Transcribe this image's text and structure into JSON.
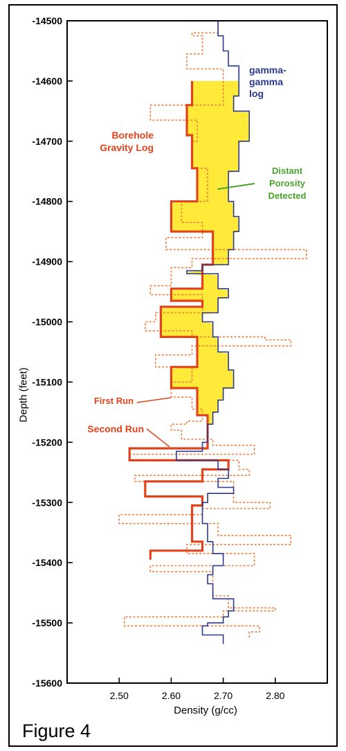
{
  "figure_caption": "Figure 4",
  "chart_data": {
    "type": "line",
    "title": "",
    "xlabel": "Density (g/cc)",
    "ylabel": "Depth (feet)",
    "xlim": [
      2.4,
      2.9
    ],
    "ylim": [
      -15600,
      -14500
    ],
    "xticks": [
      2.5,
      2.6,
      2.7,
      2.8
    ],
    "xtick_labels": [
      "2.50",
      "2.60",
      "2.70",
      "2.80"
    ],
    "yticks": [
      -14500,
      -14600,
      -14700,
      -14800,
      -14900,
      -15000,
      -15100,
      -15200,
      -15300,
      -15400,
      -15500,
      -15600
    ],
    "ytick_labels": [
      "-14500",
      "-14600",
      "-14700",
      "-14800",
      "-14900",
      "-15000",
      "-15100",
      "-15200",
      "-15300",
      "-15400",
      "-15500",
      "-15600"
    ],
    "grid": false,
    "colors": {
      "gamma": "#2b3a8f",
      "second_run": "#e2431b",
      "first_run": "#ef7c3a",
      "porosity_fill": "#ffea3a",
      "porosity_label": "#4aa32a"
    },
    "series": [
      {
        "name": "gamma-gamma log",
        "style": "solid-thin",
        "points": [
          [
            2.69,
            -14500
          ],
          [
            2.69,
            -14525
          ],
          [
            2.7,
            -14525
          ],
          [
            2.7,
            -14550
          ],
          [
            2.71,
            -14550
          ],
          [
            2.71,
            -14575
          ],
          [
            2.73,
            -14575
          ],
          [
            2.73,
            -14625
          ],
          [
            2.72,
            -14625
          ],
          [
            2.72,
            -14650
          ],
          [
            2.75,
            -14650
          ],
          [
            2.75,
            -14700
          ],
          [
            2.73,
            -14700
          ],
          [
            2.73,
            -14750
          ],
          [
            2.71,
            -14750
          ],
          [
            2.71,
            -14800
          ],
          [
            2.72,
            -14800
          ],
          [
            2.72,
            -14825
          ],
          [
            2.73,
            -14825
          ],
          [
            2.73,
            -14850
          ],
          [
            2.72,
            -14850
          ],
          [
            2.72,
            -14880
          ],
          [
            2.71,
            -14880
          ],
          [
            2.71,
            -14905
          ],
          [
            2.66,
            -14905
          ],
          [
            2.66,
            -14915
          ],
          [
            2.63,
            -14915
          ],
          [
            2.63,
            -14920
          ],
          [
            2.69,
            -14920
          ],
          [
            2.69,
            -14945
          ],
          [
            2.71,
            -14945
          ],
          [
            2.71,
            -14960
          ],
          [
            2.69,
            -14960
          ],
          [
            2.69,
            -14985
          ],
          [
            2.66,
            -14985
          ],
          [
            2.66,
            -15000
          ],
          [
            2.68,
            -15000
          ],
          [
            2.68,
            -15025
          ],
          [
            2.69,
            -15025
          ],
          [
            2.69,
            -15050
          ],
          [
            2.71,
            -15050
          ],
          [
            2.71,
            -15080
          ],
          [
            2.72,
            -15080
          ],
          [
            2.72,
            -15110
          ],
          [
            2.7,
            -15110
          ],
          [
            2.7,
            -15130
          ],
          [
            2.69,
            -15130
          ],
          [
            2.69,
            -15150
          ],
          [
            2.68,
            -15150
          ],
          [
            2.68,
            -15170
          ],
          [
            2.67,
            -15170
          ],
          [
            2.67,
            -15200
          ],
          [
            2.66,
            -15200
          ],
          [
            2.66,
            -15215
          ],
          [
            2.61,
            -15215
          ],
          [
            2.61,
            -15230
          ],
          [
            2.69,
            -15230
          ],
          [
            2.69,
            -15245
          ],
          [
            2.71,
            -15245
          ],
          [
            2.71,
            -15260
          ],
          [
            2.69,
            -15260
          ],
          [
            2.69,
            -15275
          ],
          [
            2.72,
            -15275
          ],
          [
            2.72,
            -15285
          ],
          [
            2.67,
            -15285
          ],
          [
            2.67,
            -15300
          ],
          [
            2.66,
            -15300
          ],
          [
            2.66,
            -15335
          ],
          [
            2.67,
            -15335
          ],
          [
            2.67,
            -15365
          ],
          [
            2.68,
            -15365
          ],
          [
            2.68,
            -15385
          ],
          [
            2.7,
            -15385
          ],
          [
            2.7,
            -15405
          ],
          [
            2.68,
            -15405
          ],
          [
            2.68,
            -15420
          ],
          [
            2.67,
            -15420
          ],
          [
            2.67,
            -15435
          ],
          [
            2.68,
            -15435
          ],
          [
            2.68,
            -15460
          ],
          [
            2.72,
            -15460
          ],
          [
            2.72,
            -15480
          ],
          [
            2.71,
            -15480
          ],
          [
            2.71,
            -15490
          ],
          [
            2.7,
            -15490
          ],
          [
            2.7,
            -15500
          ],
          [
            2.67,
            -15500
          ],
          [
            2.67,
            -15505
          ],
          [
            2.66,
            -15505
          ],
          [
            2.66,
            -15520
          ],
          [
            2.7,
            -15520
          ],
          [
            2.7,
            -15535
          ]
        ]
      },
      {
        "name": "Second Run",
        "style": "solid-thick",
        "points": [
          [
            2.64,
            -14600
          ],
          [
            2.64,
            -14640
          ],
          [
            2.63,
            -14640
          ],
          [
            2.63,
            -14690
          ],
          [
            2.64,
            -14690
          ],
          [
            2.64,
            -14745
          ],
          [
            2.65,
            -14745
          ],
          [
            2.65,
            -14800
          ],
          [
            2.6,
            -14800
          ],
          [
            2.6,
            -14850
          ],
          [
            2.68,
            -14850
          ],
          [
            2.68,
            -14905
          ],
          [
            2.66,
            -14905
          ],
          [
            2.66,
            -14945
          ],
          [
            2.6,
            -14945
          ],
          [
            2.6,
            -14965
          ],
          [
            2.66,
            -14965
          ],
          [
            2.66,
            -14975
          ],
          [
            2.58,
            -14975
          ],
          [
            2.58,
            -15025
          ],
          [
            2.62,
            -15025
          ],
          [
            2.62,
            -15025
          ],
          [
            2.65,
            -15025
          ],
          [
            2.65,
            -15075
          ],
          [
            2.6,
            -15075
          ],
          [
            2.6,
            -15110
          ],
          [
            2.65,
            -15110
          ],
          [
            2.65,
            -15155
          ],
          [
            2.67,
            -15155
          ],
          [
            2.67,
            -15210
          ],
          [
            2.52,
            -15210
          ],
          [
            2.52,
            -15230
          ],
          [
            2.71,
            -15230
          ],
          [
            2.71,
            -15245
          ],
          [
            2.66,
            -15245
          ],
          [
            2.66,
            -15265
          ],
          [
            2.55,
            -15265
          ],
          [
            2.55,
            -15290
          ],
          [
            2.66,
            -15290
          ],
          [
            2.66,
            -15305
          ],
          [
            2.64,
            -15305
          ],
          [
            2.64,
            -15365
          ],
          [
            2.66,
            -15365
          ],
          [
            2.66,
            -15380
          ],
          [
            2.56,
            -15380
          ],
          [
            2.56,
            -15395
          ]
        ]
      },
      {
        "name": "First Run",
        "style": "dotted",
        "points": [
          [
            2.69,
            -14500
          ],
          [
            2.69,
            -14520
          ],
          [
            2.64,
            -14520
          ],
          [
            2.64,
            -14525
          ],
          [
            2.66,
            -14525
          ],
          [
            2.66,
            -14555
          ],
          [
            2.63,
            -14555
          ],
          [
            2.63,
            -14580
          ],
          [
            2.7,
            -14580
          ],
          [
            2.7,
            -14640
          ],
          [
            2.56,
            -14640
          ],
          [
            2.56,
            -14665
          ],
          [
            2.65,
            -14665
          ],
          [
            2.65,
            -14700
          ],
          [
            2.64,
            -14700
          ],
          [
            2.64,
            -14745
          ],
          [
            2.67,
            -14745
          ],
          [
            2.67,
            -14800
          ],
          [
            2.62,
            -14800
          ],
          [
            2.62,
            -14835
          ],
          [
            2.66,
            -14835
          ],
          [
            2.66,
            -14860
          ],
          [
            2.59,
            -14860
          ],
          [
            2.59,
            -14880
          ],
          [
            2.86,
            -14880
          ],
          [
            2.86,
            -14895
          ],
          [
            2.64,
            -14895
          ],
          [
            2.64,
            -14910
          ],
          [
            2.6,
            -14910
          ],
          [
            2.6,
            -14940
          ],
          [
            2.56,
            -14940
          ],
          [
            2.56,
            -14955
          ],
          [
            2.66,
            -14955
          ],
          [
            2.66,
            -14985
          ],
          [
            2.57,
            -14985
          ],
          [
            2.57,
            -15000
          ],
          [
            2.55,
            -15000
          ],
          [
            2.55,
            -15015
          ],
          [
            2.64,
            -15015
          ],
          [
            2.64,
            -15025
          ],
          [
            2.78,
            -15025
          ],
          [
            2.78,
            -15030
          ],
          [
            2.83,
            -15030
          ],
          [
            2.83,
            -15040
          ],
          [
            2.64,
            -15040
          ],
          [
            2.64,
            -15055
          ],
          [
            2.57,
            -15055
          ],
          [
            2.57,
            -15075
          ],
          [
            2.64,
            -15075
          ],
          [
            2.64,
            -15100
          ],
          [
            2.6,
            -15100
          ],
          [
            2.6,
            -15125
          ],
          [
            2.64,
            -15125
          ],
          [
            2.64,
            -15145
          ],
          [
            2.66,
            -15145
          ],
          [
            2.66,
            -15165
          ],
          [
            2.63,
            -15165
          ],
          [
            2.63,
            -15170
          ],
          [
            2.6,
            -15170
          ],
          [
            2.6,
            -15180
          ],
          [
            2.62,
            -15180
          ],
          [
            2.62,
            -15195
          ],
          [
            2.68,
            -15195
          ],
          [
            2.68,
            -15205
          ],
          [
            2.76,
            -15205
          ],
          [
            2.76,
            -15220
          ],
          [
            2.52,
            -15220
          ],
          [
            2.52,
            -15230
          ],
          [
            2.73,
            -15230
          ],
          [
            2.73,
            -15245
          ],
          [
            2.75,
            -15245
          ],
          [
            2.75,
            -15255
          ],
          [
            2.53,
            -15255
          ],
          [
            2.53,
            -15265
          ],
          [
            2.72,
            -15265
          ],
          [
            2.72,
            -15300
          ],
          [
            2.79,
            -15300
          ],
          [
            2.79,
            -15310
          ],
          [
            2.66,
            -15310
          ],
          [
            2.66,
            -15320
          ],
          [
            2.5,
            -15320
          ],
          [
            2.5,
            -15335
          ],
          [
            2.69,
            -15335
          ],
          [
            2.69,
            -15355
          ],
          [
            2.83,
            -15355
          ],
          [
            2.83,
            -15370
          ],
          [
            2.63,
            -15370
          ],
          [
            2.63,
            -15385
          ],
          [
            2.76,
            -15385
          ],
          [
            2.76,
            -15405
          ],
          [
            2.56,
            -15405
          ],
          [
            2.56,
            -15415
          ],
          [
            2.68,
            -15415
          ],
          [
            2.68,
            -15455
          ],
          [
            2.71,
            -15455
          ],
          [
            2.71,
            -15475
          ],
          [
            2.8,
            -15475
          ],
          [
            2.8,
            -15480
          ],
          [
            2.7,
            -15480
          ],
          [
            2.7,
            -15490
          ],
          [
            2.51,
            -15490
          ],
          [
            2.51,
            -15505
          ],
          [
            2.77,
            -15505
          ],
          [
            2.77,
            -15515
          ],
          [
            2.75,
            -15515
          ],
          [
            2.75,
            -15525
          ]
        ]
      }
    ],
    "shaded_region": {
      "name": "Distant Porosity Detected",
      "depth_range": [
        -14600,
        -15200
      ]
    },
    "annotations": [
      {
        "lines": [
          "gamma-",
          "gamma",
          "log"
        ],
        "color": "#2b3a8f",
        "series": "gamma-gamma log"
      },
      {
        "lines": [
          "Borehole",
          "Gravity Log"
        ],
        "color": "#e2431b"
      },
      {
        "lines": [
          "Distant",
          "Porosity",
          "Detected"
        ],
        "color": "#4aa32a"
      },
      {
        "lines": [
          "First Run"
        ],
        "color": "#e2431b"
      },
      {
        "lines": [
          "Second Run"
        ],
        "color": "#e2431b"
      }
    ]
  }
}
